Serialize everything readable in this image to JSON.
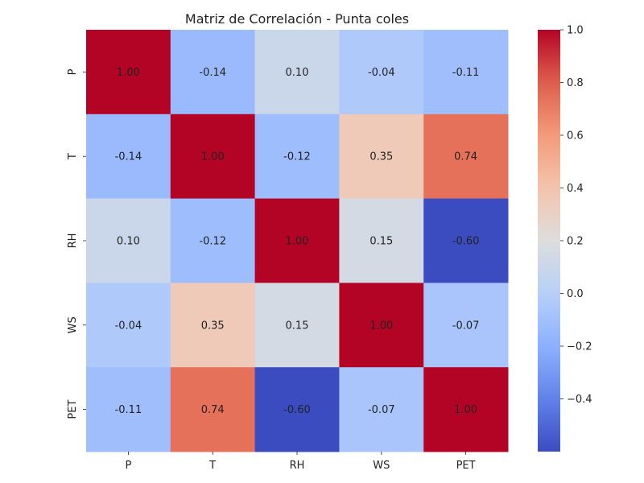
{
  "chart_data": {
    "type": "heatmap",
    "title": "Matriz de Correlación - Punta coles",
    "x_labels": [
      "P",
      "T",
      "RH",
      "WS",
      "PET"
    ],
    "y_labels": [
      "P",
      "T",
      "RH",
      "WS",
      "PET"
    ],
    "values": [
      [
        1.0,
        -0.14,
        0.1,
        -0.04,
        -0.11
      ],
      [
        -0.14,
        1.0,
        -0.12,
        0.35,
        0.74
      ],
      [
        0.1,
        -0.12,
        1.0,
        0.15,
        -0.6
      ],
      [
        -0.04,
        0.35,
        0.15,
        1.0,
        -0.07
      ],
      [
        -0.11,
        0.74,
        -0.6,
        -0.07,
        1.0
      ]
    ],
    "cell_labels": [
      [
        "1.00",
        "-0.14",
        "0.10",
        "-0.04",
        "-0.11"
      ],
      [
        "-0.14",
        "1.00",
        "-0.12",
        "0.35",
        "0.74"
      ],
      [
        "0.10",
        "-0.12",
        "1.00",
        "0.15",
        "-0.60"
      ],
      [
        "-0.04",
        "0.35",
        "0.15",
        "1.00",
        "-0.07"
      ],
      [
        "-0.11",
        "0.74",
        "-0.60",
        "-0.07",
        "1.00"
      ]
    ],
    "colormap": "coolwarm",
    "vmin": -0.6,
    "vmax": 1.0,
    "colorbar_ticks": [
      1.0,
      0.8,
      0.6,
      0.4,
      0.2,
      0.0,
      -0.2,
      -0.4
    ],
    "colorbar_tick_labels": [
      "1.0",
      "0.8",
      "0.6",
      "0.4",
      "0.2",
      "0.0",
      "−0.2",
      "−0.4"
    ],
    "colors": {
      "cmap_low": "#3b4cc0",
      "cmap_mid": "#dddddd",
      "cmap_high": "#b40426"
    }
  }
}
